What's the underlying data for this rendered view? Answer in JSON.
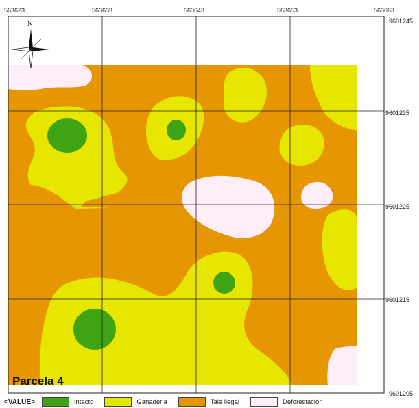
{
  "map": {
    "x_ticks": [
      "563623",
      "563633",
      "563643",
      "563653",
      "563663"
    ],
    "y_ticks": [
      "9601245",
      "9601235",
      "9601225",
      "9601215",
      "9601205"
    ],
    "north_label": "N",
    "parcel_label": "Parcela 4"
  },
  "legend": {
    "title": "<VALUE>",
    "items": [
      {
        "label": "Intacto",
        "color": "#3fa414"
      },
      {
        "label": "Ganaderia",
        "color": "#e6e600"
      },
      {
        "label": "Tala ilegal",
        "color": "#e69600"
      },
      {
        "label": "Deforestación",
        "color": "#fdeefa"
      }
    ]
  }
}
